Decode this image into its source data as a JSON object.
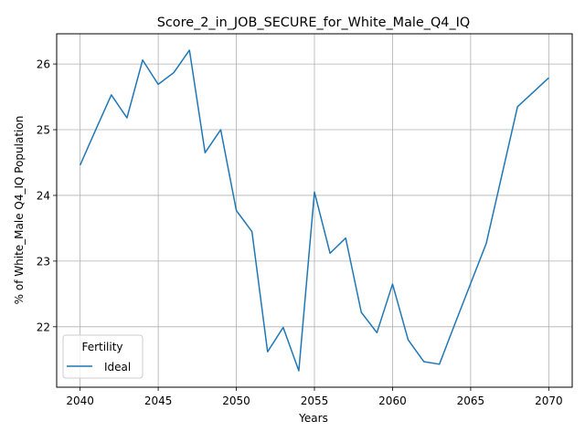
{
  "chart_data": {
    "type": "line",
    "title": "Score_2_in_JOB_SECURE_for_White_Male_Q4_IQ",
    "xlabel": "Years",
    "ylabel": "% of White_Male Q4_IQ Population",
    "xlim": [
      2038.5,
      2071.5
    ],
    "ylim": [
      21.08,
      26.46
    ],
    "xticks": [
      2040,
      2045,
      2050,
      2055,
      2060,
      2065,
      2070
    ],
    "yticks": [
      22,
      23,
      24,
      25,
      26
    ],
    "grid": true,
    "legend": {
      "title": "Fertility",
      "placement": "lower-left"
    },
    "series": [
      {
        "name": "Ideal",
        "color": "#1f77b4",
        "x": [
          2040,
          2041,
          2042,
          2043,
          2044,
          2045,
          2046,
          2047,
          2048,
          2049,
          2050,
          2051,
          2052,
          2053,
          2054,
          2055,
          2056,
          2057,
          2058,
          2059,
          2060,
          2061,
          2062,
          2063,
          2064,
          2065,
          2066,
          2067,
          2068,
          2069,
          2070
        ],
        "y": [
          24.46,
          25.0,
          25.53,
          25.18,
          26.06,
          25.69,
          25.87,
          26.21,
          24.65,
          25.0,
          23.77,
          23.45,
          21.62,
          21.99,
          21.33,
          24.05,
          23.12,
          23.35,
          22.22,
          21.91,
          22.65,
          21.8,
          21.47,
          21.43,
          22.05,
          22.66,
          23.27,
          24.31,
          25.35,
          25.57,
          25.79
        ]
      }
    ]
  }
}
